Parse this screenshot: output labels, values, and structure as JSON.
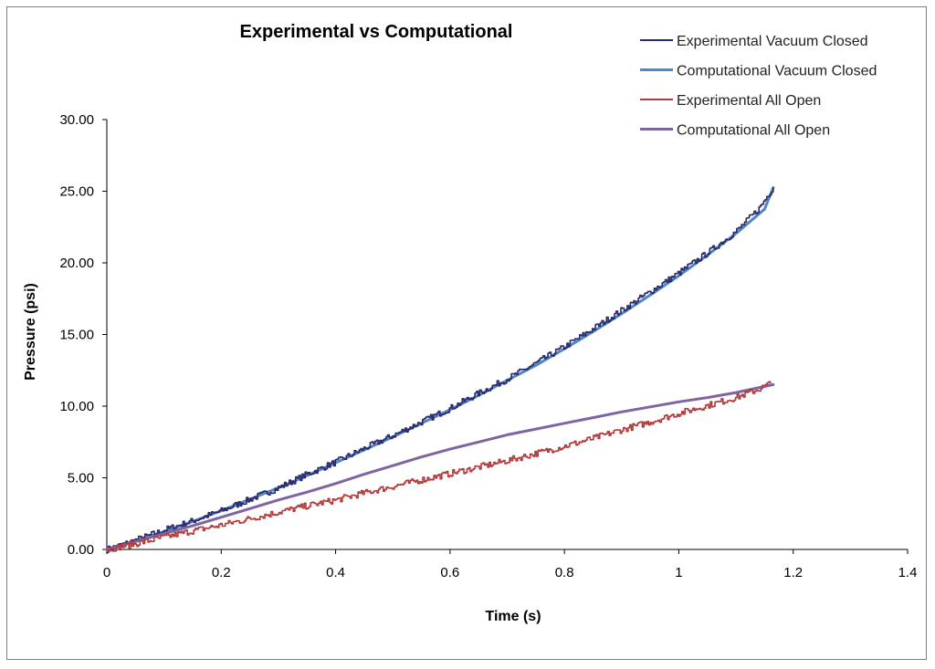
{
  "chart_data": {
    "type": "line",
    "title": "Experimental vs Computational",
    "xlabel": "Time (s)",
    "ylabel": "Pressure (psi)",
    "xlim": [
      0,
      1.4
    ],
    "ylim": [
      0,
      30
    ],
    "x_ticks": [
      "0",
      "0.2",
      "0.4",
      "0.6",
      "0.8",
      "1",
      "1.2",
      "1.4"
    ],
    "x_tick_values": [
      0,
      0.2,
      0.4,
      0.6,
      0.8,
      1.0,
      1.2,
      1.4
    ],
    "y_ticks": [
      "0.00",
      "5.00",
      "10.00",
      "15.00",
      "20.00",
      "25.00",
      "30.00"
    ],
    "y_tick_values": [
      0,
      5,
      10,
      15,
      20,
      25,
      30
    ],
    "grid": false,
    "legend_position": "top-right",
    "series": [
      {
        "name": "Experimental Vacuum Closed",
        "color": "#2b2a6b",
        "noisy": true,
        "x": [
          0,
          0.05,
          0.1,
          0.15,
          0.2,
          0.25,
          0.3,
          0.35,
          0.4,
          0.45,
          0.5,
          0.55,
          0.6,
          0.65,
          0.7,
          0.75,
          0.8,
          0.85,
          0.9,
          0.95,
          1.0,
          1.05,
          1.1,
          1.14,
          1.165
        ],
        "y": [
          0,
          0.65,
          1.35,
          2.0,
          2.7,
          3.5,
          4.3,
          5.25,
          6.1,
          7.05,
          7.95,
          8.9,
          9.85,
          10.9,
          11.9,
          13.0,
          14.15,
          15.4,
          16.7,
          18.0,
          19.3,
          20.7,
          22.2,
          23.8,
          25.3
        ]
      },
      {
        "name": "Computational Vacuum Closed",
        "color": "#4f86c6",
        "noisy": false,
        "x": [
          0,
          0.05,
          0.1,
          0.15,
          0.2,
          0.25,
          0.3,
          0.35,
          0.4,
          0.45,
          0.5,
          0.55,
          0.6,
          0.65,
          0.7,
          0.75,
          0.8,
          0.85,
          0.9,
          0.95,
          1.0,
          1.05,
          1.1,
          1.15,
          1.165
        ],
        "y": [
          0,
          0.6,
          1.25,
          1.95,
          2.7,
          3.5,
          4.3,
          5.15,
          6.05,
          6.95,
          7.85,
          8.8,
          9.75,
          10.75,
          11.8,
          12.85,
          14.0,
          15.2,
          16.45,
          17.75,
          19.1,
          20.55,
          22.05,
          23.75,
          25.25
        ]
      },
      {
        "name": "Experimental All Open",
        "color": "#b23a3a",
        "noisy": true,
        "x": [
          0,
          0.05,
          0.1,
          0.15,
          0.2,
          0.25,
          0.3,
          0.35,
          0.4,
          0.45,
          0.5,
          0.55,
          0.6,
          0.65,
          0.7,
          0.75,
          0.8,
          0.85,
          0.9,
          0.95,
          1.0,
          1.05,
          1.1,
          1.14,
          1.16
        ],
        "y": [
          0,
          0.4,
          0.85,
          1.3,
          1.7,
          2.15,
          2.6,
          3.05,
          3.45,
          3.95,
          4.4,
          4.85,
          5.3,
          5.75,
          6.2,
          6.7,
          7.2,
          7.75,
          8.35,
          8.9,
          9.5,
          10.05,
          10.6,
          11.2,
          11.6
        ]
      },
      {
        "name": "Computational All Open",
        "color": "#8064a2",
        "noisy": false,
        "x": [
          0,
          0.05,
          0.1,
          0.15,
          0.2,
          0.25,
          0.3,
          0.35,
          0.4,
          0.45,
          0.5,
          0.55,
          0.6,
          0.65,
          0.7,
          0.75,
          0.8,
          0.85,
          0.9,
          0.95,
          1.0,
          1.05,
          1.1,
          1.165
        ],
        "y": [
          0,
          0.55,
          1.1,
          1.65,
          2.25,
          2.85,
          3.45,
          4.0,
          4.6,
          5.25,
          5.85,
          6.45,
          7.0,
          7.5,
          8.0,
          8.4,
          8.8,
          9.2,
          9.6,
          9.95,
          10.3,
          10.6,
          10.95,
          11.5
        ]
      }
    ]
  }
}
